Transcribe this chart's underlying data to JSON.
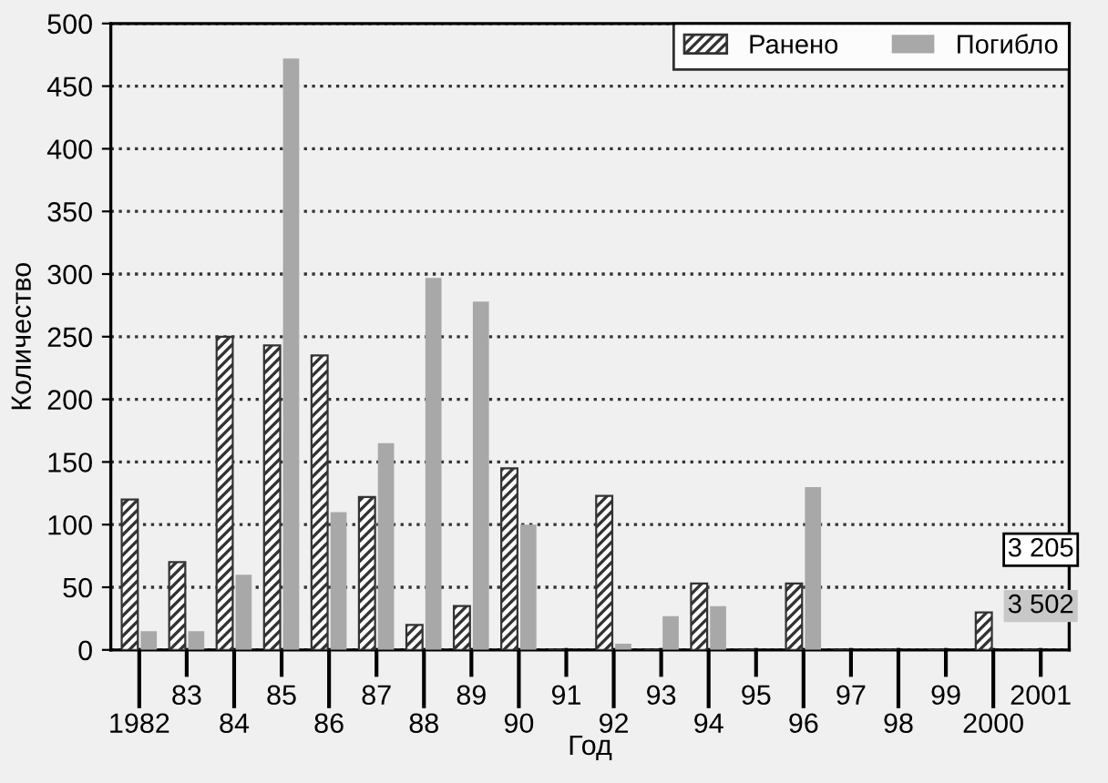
{
  "chart_data": {
    "type": "bar",
    "xlabel": "Год",
    "ylabel": "Количество",
    "categories": [
      "1982",
      "83",
      "84",
      "85",
      "86",
      "87",
      "88",
      "89",
      "90",
      "91",
      "92",
      "93",
      "94",
      "95",
      "96",
      "97",
      "98",
      "99",
      "2000",
      "2001"
    ],
    "series": [
      {
        "name": "Ранено",
        "color": "#333333",
        "values": [
          120,
          70,
          250,
          243,
          235,
          122,
          20,
          35,
          145,
          0,
          123,
          0,
          53,
          0,
          53,
          0,
          0,
          0,
          30,
          null
        ]
      },
      {
        "name": "Погибло",
        "color": "#a8a8a8",
        "values": [
          15,
          15,
          60,
          472,
          110,
          165,
          297,
          278,
          100,
          null,
          5,
          27,
          35,
          null,
          130,
          0,
          0,
          null,
          0,
          null
        ]
      }
    ],
    "annotations": [
      {
        "text": "3 205",
        "x": "2001"
      },
      {
        "text": "3 502",
        "x": "2001"
      }
    ],
    "ylim": [
      0,
      500
    ],
    "yticks": [
      0,
      50,
      100,
      150,
      200,
      250,
      300,
      350,
      400,
      450,
      500
    ],
    "grid": "y",
    "legend": "top right"
  }
}
